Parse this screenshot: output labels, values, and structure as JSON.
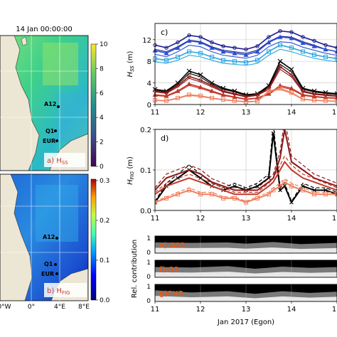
{
  "map_panels": {
    "title": "14 Jan 00:00:00",
    "hss": {
      "label": "a) H",
      "label_sub": "SS",
      "colorbar_ticks": [
        "10",
        "8",
        "6",
        "4",
        "2",
        "0"
      ],
      "stations": [
        "A12",
        "Q1",
        "EUR"
      ]
    },
    "hfig": {
      "label": "b) H",
      "label_sub": "FIG",
      "colorbar_ticks": [
        "0.3",
        "0.2",
        "0.1",
        "0.0"
      ],
      "stations": [
        "A12",
        "Q1",
        "EUR"
      ],
      "lon_ticks": [
        "0°W",
        "0°",
        "4°E",
        "8°E"
      ]
    }
  },
  "panel_c": {
    "label": "c)",
    "ylabel": "H",
    "ylabel_sub": "SS",
    "ylabel_unit": " (m)",
    "yticks": [
      "0",
      "4",
      "8",
      "12"
    ],
    "xticks": [
      "11",
      "12",
      "13",
      "14",
      "1"
    ]
  },
  "panel_d": {
    "label": "d)",
    "ylabel": "H",
    "ylabel_sub": "FIG",
    "ylabel_unit": " (m)",
    "yticks": [
      "0.0",
      "0.1",
      "0.2"
    ],
    "xticks": [
      "11",
      "12",
      "13",
      "14",
      "1"
    ]
  },
  "panel_rel": {
    "ylabel": "Rel. contribution",
    "rows": [
      {
        "label": "e) A12",
        "ticks": [
          "1",
          "0"
        ]
      },
      {
        "label": "f) Q1",
        "ticks": [
          "1",
          "0"
        ]
      },
      {
        "label": "g)EUR",
        "ticks": [
          "1",
          "0"
        ]
      }
    ],
    "xticks": [
      "11",
      "12",
      "13",
      "14",
      "1"
    ],
    "xlabel": "Jan 2017 (Egon)"
  },
  "colors": {
    "navy": "#1a1a8c",
    "blue": "#2b4fd0",
    "cyan": "#2aa6e0",
    "black": "#000000",
    "darkred": "#8b1a1a",
    "red": "#c0392b",
    "salmon": "#f08060",
    "orange_label": "#e05a1a",
    "accent_label": "#c0392b"
  },
  "chart_data": [
    {
      "type": "line",
      "xlabel": "",
      "ylabel": "H_SS (m)",
      "xlim": [
        11,
        15
      ],
      "ylim": [
        0,
        15
      ],
      "x": [
        11.0,
        11.25,
        11.5,
        11.75,
        12.0,
        12.25,
        12.5,
        12.75,
        13.0,
        13.25,
        13.5,
        13.75,
        14.0,
        14.25,
        14.5,
        14.75,
        15.0
      ],
      "series": [
        {
          "values": [
            11.0,
            10.5,
            11.5,
            12.8,
            12.5,
            11.5,
            10.8,
            10.5,
            10.2,
            10.8,
            12.5,
            13.6,
            13.4,
            12.5,
            11.8,
            11.0,
            10.5
          ],
          "color": "navy"
        },
        {
          "values": [
            10.0,
            9.5,
            10.5,
            11.8,
            11.5,
            10.5,
            9.8,
            9.5,
            9.2,
            9.8,
            11.5,
            12.5,
            12.3,
            11.4,
            10.8,
            10.2,
            9.8
          ],
          "color": "blue"
        },
        {
          "values": [
            8.5,
            8.2,
            8.8,
            9.8,
            9.5,
            8.8,
            8.2,
            8.0,
            7.8,
            8.2,
            9.8,
            11.0,
            10.5,
            9.8,
            9.2,
            8.8,
            8.5
          ],
          "color": "cyan"
        },
        {
          "values": [
            2.8,
            2.5,
            4.0,
            6.2,
            5.5,
            4.0,
            3.0,
            2.5,
            1.8,
            2.0,
            3.5,
            8.0,
            6.5,
            3.0,
            2.5,
            2.2,
            2.0
          ],
          "color": "black"
        },
        {
          "values": [
            2.5,
            2.2,
            3.5,
            5.2,
            4.5,
            3.5,
            2.5,
            2.0,
            1.5,
            1.8,
            3.0,
            7.0,
            5.5,
            2.5,
            2.0,
            1.8,
            1.6
          ],
          "color": "darkred"
        },
        {
          "values": [
            1.8,
            1.6,
            2.5,
            3.8,
            3.2,
            2.5,
            1.8,
            1.4,
            1.0,
            1.2,
            2.0,
            3.5,
            3.0,
            1.8,
            1.5,
            1.3,
            1.2
          ],
          "color": "red"
        },
        {
          "values": [
            0.8,
            0.7,
            1.2,
            1.8,
            1.6,
            1.2,
            0.9,
            0.7,
            0.5,
            0.6,
            2.5,
            3.0,
            2.2,
            1.0,
            0.8,
            0.7,
            0.6
          ],
          "color": "salmon"
        }
      ]
    },
    {
      "type": "line",
      "xlabel": "",
      "ylabel": "H_FIG (m)",
      "xlim": [
        11,
        15
      ],
      "ylim": [
        0,
        0.2
      ],
      "x": [
        11.0,
        11.25,
        11.5,
        11.75,
        12.0,
        12.25,
        12.5,
        12.75,
        13.0,
        13.25,
        13.5,
        13.6,
        13.75,
        13.85,
        14.0,
        14.25,
        14.5,
        14.75,
        15.0
      ],
      "series": [
        {
          "values": [
            0.02,
            0.06,
            0.08,
            0.1,
            0.08,
            0.06,
            0.05,
            0.06,
            0.05,
            0.06,
            0.08,
            0.19,
            0.05,
            0.06,
            0.02,
            0.06,
            0.05,
            0.05,
            0.04
          ],
          "color": "black"
        },
        {
          "values": [
            0.05,
            0.08,
            0.09,
            0.1,
            0.09,
            0.07,
            0.06,
            0.05,
            0.05,
            0.05,
            0.07,
            0.08,
            0.13,
            0.2,
            0.12,
            0.1,
            0.08,
            0.07,
            0.06
          ],
          "color": "darkred"
        },
        {
          "values": [
            0.04,
            0.06,
            0.07,
            0.08,
            0.07,
            0.06,
            0.05,
            0.04,
            0.04,
            0.04,
            0.06,
            0.07,
            0.1,
            0.12,
            0.1,
            0.08,
            0.07,
            0.06,
            0.05
          ],
          "color": "red"
        },
        {
          "values": [
            0.02,
            0.03,
            0.04,
            0.05,
            0.04,
            0.04,
            0.03,
            0.03,
            0.02,
            0.03,
            0.04,
            0.05,
            0.06,
            0.07,
            0.06,
            0.05,
            0.04,
            0.04,
            0.04
          ],
          "color": "salmon"
        }
      ]
    }
  ]
}
